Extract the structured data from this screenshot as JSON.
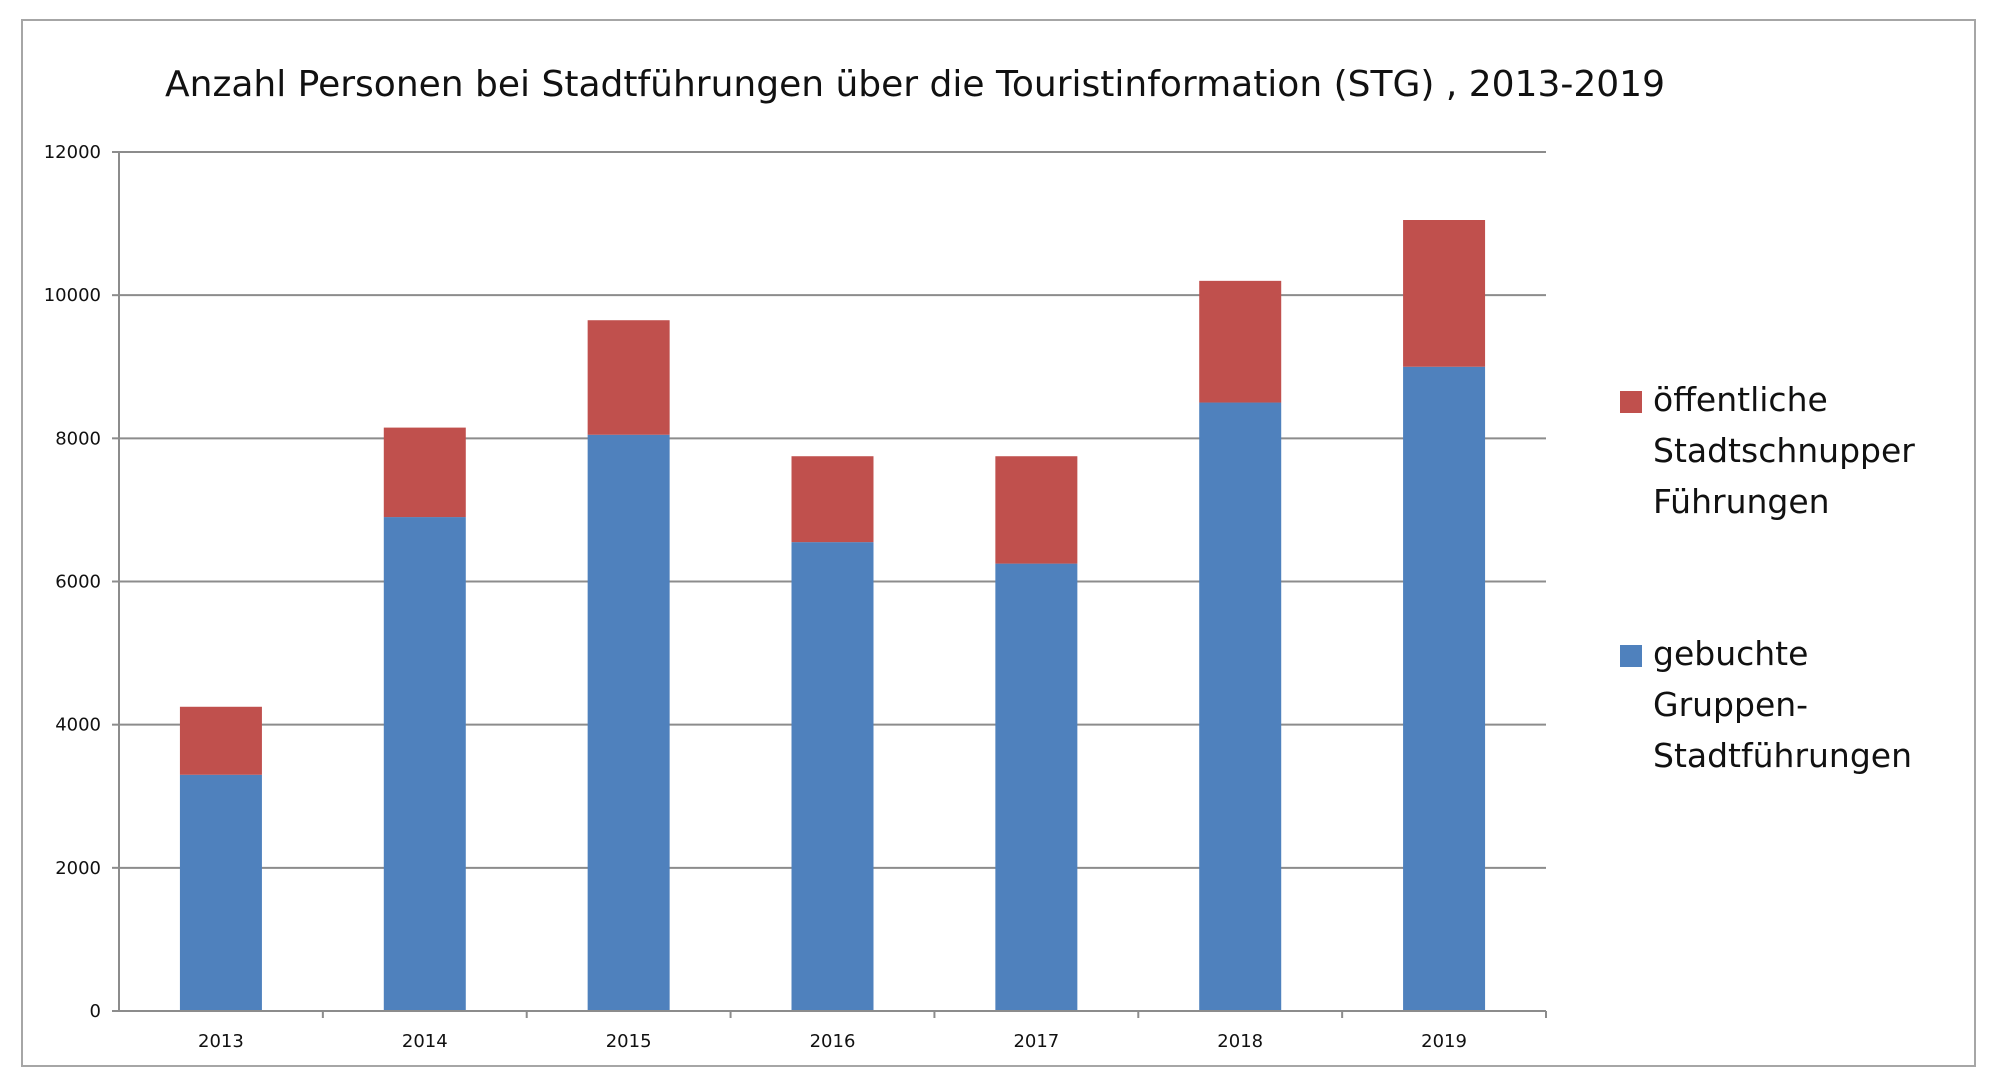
{
  "chart_data": {
    "type": "bar",
    "stacked": true,
    "title": "Anzahl Personen bei Stadtführungen über die Touristinformation (STG) , 2013-2019",
    "xlabel": "",
    "ylabel": "",
    "categories": [
      "2013",
      "2014",
      "2015",
      "2016",
      "2017",
      "2018",
      "2019"
    ],
    "ylim": [
      0,
      12000
    ],
    "yticks": [
      0,
      2000,
      4000,
      6000,
      8000,
      10000,
      12000
    ],
    "grid": true,
    "legend_position": "right",
    "series": [
      {
        "name": "gebuchte Gruppen-Stadtführungen",
        "legend_lines": [
          "gebuchte",
          "Gruppen-",
          "Stadtführungen"
        ],
        "color": "#4f81bd",
        "values": [
          3300,
          6900,
          8050,
          6550,
          6250,
          8500,
          9000
        ]
      },
      {
        "name": "öffentliche Stadtschnupper Führungen",
        "legend_lines": [
          "öffentliche",
          "Stadtschnupper",
          "Führungen"
        ],
        "color": "#c0504d",
        "values": [
          950,
          1250,
          1600,
          1200,
          1500,
          1700,
          2050
        ]
      }
    ]
  }
}
